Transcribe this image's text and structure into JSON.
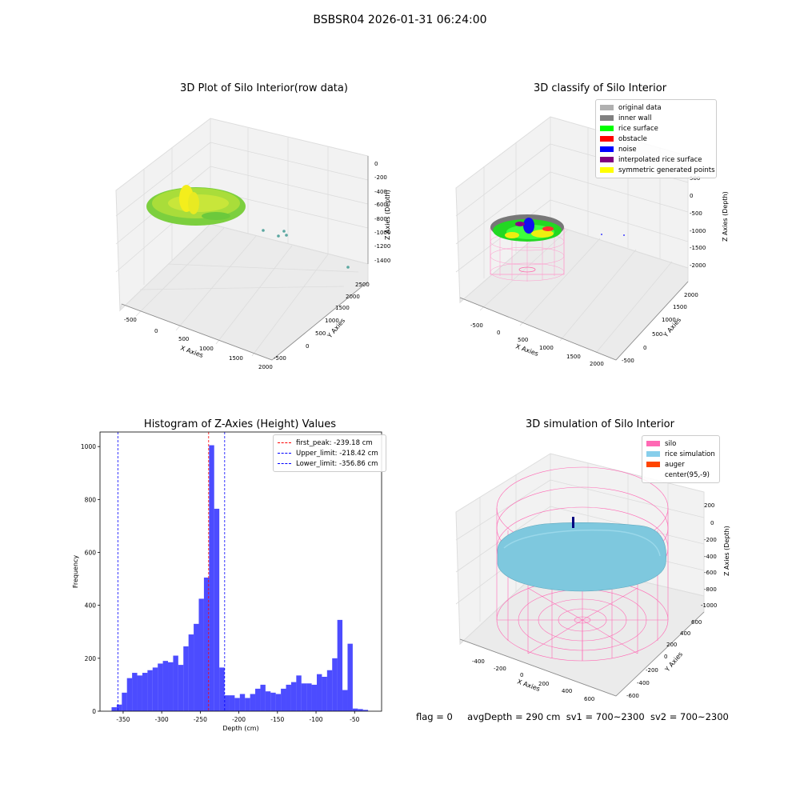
{
  "suptitle": "BSBSR04 2026-01-31 06:24:00",
  "status": {
    "flag": "flag = 0",
    "avg_depth": "avgDepth = 290 cm",
    "sv1": "sv1 = 700~2300",
    "sv2": "sv2 = 700~2300"
  },
  "panel1": {
    "title": "3D Plot of Silo Interior(row data)",
    "xlabel": "X Axies",
    "ylabel": "Y Axies",
    "zlabel": "Z Axies (Depth)",
    "xticks": [
      "-500",
      "0",
      "500",
      "1000",
      "1500",
      "2000"
    ],
    "yticks": [
      "-500",
      "0",
      "500",
      "1000",
      "1500",
      "2000",
      "2500"
    ],
    "zticks": [
      "0",
      "-200",
      "-400",
      "-600",
      "-800",
      "-1000",
      "-1200",
      "-1400"
    ]
  },
  "panel2": {
    "title": "3D classify of Silo Interior",
    "xlabel": "X Axies",
    "ylabel": "Y Axies",
    "zlabel": "Z Axies (Depth)",
    "xticks": [
      "-500",
      "0",
      "500",
      "1000",
      "1500",
      "2000"
    ],
    "yticks": [
      "-500",
      "0",
      "500",
      "1000",
      "1500",
      "2000"
    ],
    "zticks": [
      "500",
      "0",
      "-500",
      "-1000",
      "-1500",
      "-2000"
    ],
    "legend": [
      {
        "label": "original data",
        "color": "#b0b0b0"
      },
      {
        "label": "inner wall",
        "color": "#808080"
      },
      {
        "label": "rice surface",
        "color": "#00ff00"
      },
      {
        "label": "obstacle",
        "color": "#ff0000"
      },
      {
        "label": "noise",
        "color": "#0000ff"
      },
      {
        "label": "interpolated rice surface",
        "color": "#800080"
      },
      {
        "label": "symmetric generated points",
        "color": "#ffff00"
      }
    ]
  },
  "panel4": {
    "title": "3D simulation of Silo Interior",
    "xlabel": "X Axies",
    "ylabel": "Y Axies",
    "zlabel": "Z Axies (Depth)",
    "xticks": [
      "-400",
      "-200",
      "0",
      "200",
      "400",
      "600"
    ],
    "yticks": [
      "-600",
      "-400",
      "-200",
      "0",
      "200",
      "400",
      "600"
    ],
    "zticks": [
      "200",
      "0",
      "-200",
      "-400",
      "-600",
      "-800",
      "-1000"
    ],
    "legend": [
      {
        "label": "silo",
        "color": "#ff69b4"
      },
      {
        "label": "rice simulation",
        "color": "#87ceeb"
      },
      {
        "label": "auger",
        "color": "#ff4500"
      },
      {
        "label": "center(95,-9)",
        "color": "#ffffff"
      }
    ]
  },
  "chart_data": {
    "type": "bar",
    "title": "Histogram of Z-Axies (Height) Values",
    "xlabel": "Depth (cm)",
    "ylabel": "Frequency",
    "xlim": [
      -380,
      -15
    ],
    "ylim": [
      0,
      1055
    ],
    "xticks": [
      -350,
      -300,
      -250,
      -200,
      -150,
      -100,
      -50
    ],
    "yticks": [
      0,
      200,
      400,
      600,
      800,
      1000
    ],
    "bin_start": -365,
    "bin_width": 6.65,
    "values": [
      15,
      25,
      70,
      125,
      145,
      135,
      145,
      155,
      165,
      180,
      190,
      185,
      210,
      175,
      245,
      290,
      330,
      425,
      505,
      1005,
      765,
      165,
      60,
      60,
      50,
      65,
      50,
      65,
      85,
      100,
      75,
      70,
      65,
      85,
      100,
      110,
      135,
      105,
      105,
      100,
      140,
      130,
      155,
      200,
      345,
      80,
      255,
      10,
      8,
      5
    ],
    "color": "#0000ff",
    "vlines": [
      {
        "label": "first_peak: -239.18 cm",
        "x": -239.18,
        "color": "#ff0000"
      },
      {
        "label": "Upper_limit: -218.42 cm",
        "x": -218.42,
        "color": "#0000ff"
      },
      {
        "label": "Lower_limit: -356.86 cm",
        "x": -356.86,
        "color": "#0000ff"
      }
    ],
    "legend_position": "top-right",
    "grid": false
  }
}
